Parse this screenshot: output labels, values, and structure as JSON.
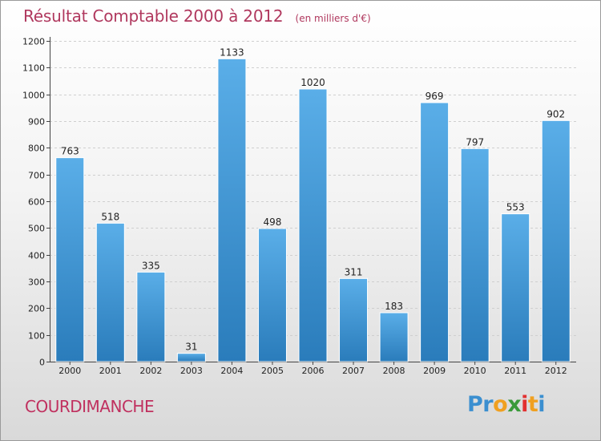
{
  "chart_data": {
    "type": "bar",
    "title": "Résultat Comptable 2000 à 2012",
    "subtitle": "(en milliers d'€)",
    "categories": [
      "2000",
      "2001",
      "2002",
      "2003",
      "2004",
      "2005",
      "2006",
      "2007",
      "2008",
      "2009",
      "2010",
      "2011",
      "2012"
    ],
    "values": [
      763,
      518,
      335,
      31,
      1133,
      498,
      1020,
      311,
      183,
      969,
      797,
      553,
      902
    ],
    "ylim": [
      0,
      1200
    ],
    "yticks": [
      0,
      100,
      200,
      300,
      400,
      500,
      600,
      700,
      800,
      900,
      1000,
      1100,
      1200
    ],
    "xlabel": "",
    "ylabel": "",
    "grid": true,
    "bar_color_top": "#5aaee8",
    "bar_color_bottom": "#2a7cbb"
  },
  "footer": {
    "city": "COURDIMANCHE"
  },
  "logo": {
    "letters": [
      "P",
      "r",
      "o",
      "x",
      "i",
      "t",
      "i"
    ],
    "colors": [
      "#3b8fd0",
      "#3b8fd0",
      "#f0a020",
      "#3a9a3a",
      "#e23030",
      "#f0a020",
      "#3b8fd0"
    ]
  }
}
